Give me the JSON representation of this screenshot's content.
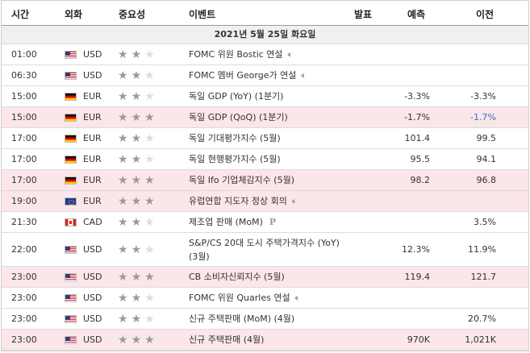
{
  "header": {
    "time": "시간",
    "currency": "외화",
    "importance": "중요성",
    "event": "이벤트",
    "actual": "발표",
    "forecast": "예측",
    "previous": "이전"
  },
  "date_label": "2021년 5월 25일 화요일",
  "events": [
    {
      "time": "01:00",
      "flag": "us-flag-icon",
      "currency": "USD",
      "stars": 2,
      "event": "FOMC 위원 Bostic 연설",
      "icon": "speaker-icon",
      "forecast": "",
      "previous": "",
      "highlight": false
    },
    {
      "time": "06:30",
      "flag": "us-flag-icon",
      "currency": "USD",
      "stars": 2,
      "event": "FOMC 멤버 George가 연설",
      "icon": "speaker-icon",
      "forecast": "",
      "previous": "",
      "highlight": false
    },
    {
      "time": "15:00",
      "flag": "de-flag-icon",
      "currency": "EUR",
      "stars": 2,
      "event": "독일 GDP (YoY) (1분기)",
      "icon": "",
      "forecast": "-3.3%",
      "previous": "-3.3%",
      "highlight": false
    },
    {
      "time": "15:00",
      "flag": "de-flag-icon",
      "currency": "EUR",
      "stars": 3,
      "event": "독일 GDP (QoQ) (1분기)",
      "icon": "",
      "forecast": "-1.7%",
      "previous": "-1.7%",
      "highlight": true,
      "prev_blue": true
    },
    {
      "time": "17:00",
      "flag": "de-flag-icon",
      "currency": "EUR",
      "stars": 2,
      "event": "독일 기대평가지수 (5월)",
      "icon": "",
      "forecast": "101.4",
      "previous": "99.5",
      "highlight": false
    },
    {
      "time": "17:00",
      "flag": "de-flag-icon",
      "currency": "EUR",
      "stars": 2,
      "event": "독일 현행평가지수 (5월)",
      "icon": "",
      "forecast": "95.5",
      "previous": "94.1",
      "highlight": false
    },
    {
      "time": "17:00",
      "flag": "de-flag-icon",
      "currency": "EUR",
      "stars": 3,
      "event": "독일 Ifo 기업체감지수 (5월)",
      "icon": "",
      "forecast": "98.2",
      "previous": "96.8",
      "highlight": true
    },
    {
      "time": "19:00",
      "flag": "eu-flag-icon",
      "currency": "EUR",
      "stars": 3,
      "event": "유럽연합 지도자 정상 회의",
      "icon": "speaker-icon",
      "forecast": "",
      "previous": "",
      "highlight": true
    },
    {
      "time": "21:30",
      "flag": "ca-flag-icon",
      "currency": "CAD",
      "stars": 2,
      "event": "제조업 판매 (MoM)",
      "icon": "preliminary-icon",
      "forecast": "",
      "previous": "3.5%",
      "highlight": false
    },
    {
      "time": "22:00",
      "flag": "us-flag-icon",
      "currency": "USD",
      "stars": 2,
      "event": "S&P/CS 20대 도시 주택가격지수 (YoY) (3월)",
      "icon": "",
      "forecast": "12.3%",
      "previous": "11.9%",
      "highlight": false
    },
    {
      "time": "23:00",
      "flag": "us-flag-icon",
      "currency": "USD",
      "stars": 3,
      "event": "CB 소비자신뢰지수 (5월)",
      "icon": "",
      "forecast": "119.4",
      "previous": "121.7",
      "highlight": true
    },
    {
      "time": "23:00",
      "flag": "us-flag-icon",
      "currency": "USD",
      "stars": 2,
      "event": "FOMC 위원 Quarles 연설",
      "icon": "speaker-icon",
      "forecast": "",
      "previous": "",
      "highlight": false
    },
    {
      "time": "23:00",
      "flag": "us-flag-icon",
      "currency": "USD",
      "stars": 2,
      "event": "신규 주택판매 (MoM) (4월)",
      "icon": "",
      "forecast": "",
      "previous": "20.7%",
      "highlight": false
    },
    {
      "time": "23:00",
      "flag": "us-flag-icon",
      "currency": "USD",
      "stars": 3,
      "event": "신규 주택판매 (4월)",
      "icon": "",
      "forecast": "970K",
      "previous": "1,021K",
      "highlight": true
    }
  ]
}
